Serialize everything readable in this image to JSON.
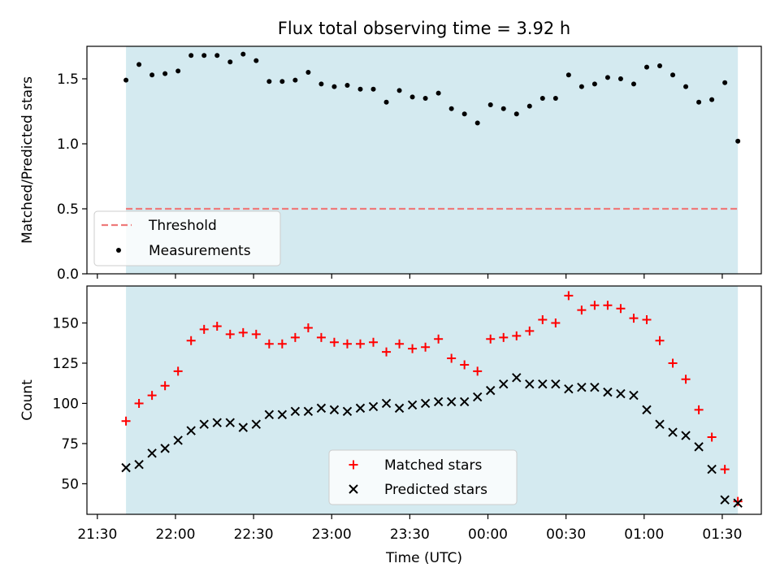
{
  "title": "Flux total observing time = 3.92 h",
  "colors": {
    "observing_span": "#d4eaf0",
    "threshold": "#ee7a7a",
    "measurements": "#000000",
    "matched": "#ff0000",
    "predicted": "#000000"
  },
  "chart_data": [
    {
      "type": "scatter",
      "title": "Flux total observing time = 3.92 h",
      "ylabel": "Matched/Predicted stars",
      "ylim": [
        0,
        1.75
      ],
      "y_ticks": [
        0.0,
        0.5,
        1.0,
        1.5
      ],
      "y_tick_labels": [
        "0.0",
        "0.5",
        "1.0",
        "1.5"
      ],
      "x_axis": "time",
      "x_ticks": [
        "21:30",
        "22:00",
        "22:30",
        "23:00",
        "23:30",
        "00:00",
        "00:30",
        "01:00",
        "01:30"
      ],
      "shaded_span": [
        "21:41",
        "01:36"
      ],
      "legend": {
        "placement": "lower-left",
        "entries": [
          "Threshold",
          "Measurements"
        ]
      },
      "threshold": {
        "name": "Threshold",
        "y": 0.5,
        "style": "dashed"
      },
      "series": [
        {
          "name": "Measurements",
          "x": [
            "21:41",
            "21:46",
            "21:51",
            "21:56",
            "22:01",
            "22:06",
            "22:11",
            "22:16",
            "22:21",
            "22:26",
            "22:31",
            "22:36",
            "22:41",
            "22:46",
            "22:51",
            "22:56",
            "23:01",
            "23:06",
            "23:11",
            "23:16",
            "23:21",
            "23:26",
            "23:31",
            "23:36",
            "23:41",
            "23:46",
            "23:51",
            "23:56",
            "00:01",
            "00:06",
            "00:11",
            "00:16",
            "00:21",
            "00:26",
            "00:31",
            "00:36",
            "00:41",
            "00:46",
            "00:51",
            "00:56",
            "01:01",
            "01:06",
            "01:11",
            "01:16",
            "01:21",
            "01:26",
            "01:31",
            "01:36"
          ],
          "values": [
            1.49,
            1.61,
            1.53,
            1.54,
            1.56,
            1.68,
            1.68,
            1.68,
            1.63,
            1.69,
            1.64,
            1.48,
            1.48,
            1.49,
            1.55,
            1.46,
            1.44,
            1.45,
            1.42,
            1.42,
            1.32,
            1.41,
            1.36,
            1.35,
            1.39,
            1.27,
            1.23,
            1.16,
            1.3,
            1.27,
            1.23,
            1.29,
            1.35,
            1.35,
            1.53,
            1.44,
            1.46,
            1.51,
            1.5,
            1.46,
            1.59,
            1.6,
            1.53,
            1.44,
            1.32,
            1.34,
            1.47,
            1.02
          ]
        }
      ]
    },
    {
      "type": "scatter",
      "xlabel": "Time (UTC)",
      "ylabel": "Count",
      "ylim": [
        31,
        173
      ],
      "y_ticks": [
        50,
        75,
        100,
        125,
        150
      ],
      "y_tick_labels": [
        "50",
        "75",
        "100",
        "125",
        "150"
      ],
      "x_axis": "time",
      "x_ticks": [
        "21:30",
        "22:00",
        "22:30",
        "23:00",
        "23:30",
        "00:00",
        "00:30",
        "01:00",
        "01:30"
      ],
      "x_tick_labels": [
        "21:30",
        "22:00",
        "22:30",
        "23:00",
        "23:30",
        "00:00",
        "00:30",
        "01:00",
        "01:30"
      ],
      "shaded_span": [
        "21:41",
        "01:36"
      ],
      "legend": {
        "placement": "lower-center",
        "entries": [
          "Matched stars",
          "Predicted stars"
        ]
      },
      "series": [
        {
          "name": "Matched stars",
          "marker": "plus",
          "x": [
            "21:41",
            "21:46",
            "21:51",
            "21:56",
            "22:01",
            "22:06",
            "22:11",
            "22:16",
            "22:21",
            "22:26",
            "22:31",
            "22:36",
            "22:41",
            "22:46",
            "22:51",
            "22:56",
            "23:01",
            "23:06",
            "23:11",
            "23:16",
            "23:21",
            "23:26",
            "23:31",
            "23:36",
            "23:41",
            "23:46",
            "23:51",
            "23:56",
            "00:01",
            "00:06",
            "00:11",
            "00:16",
            "00:21",
            "00:26",
            "00:31",
            "00:36",
            "00:41",
            "00:46",
            "00:51",
            "00:56",
            "01:01",
            "01:06",
            "01:11",
            "01:16",
            "01:21",
            "01:26",
            "01:31",
            "01:36"
          ],
          "values": [
            89,
            100,
            105,
            111,
            120,
            139,
            146,
            148,
            143,
            144,
            143,
            137,
            137,
            141,
            147,
            141,
            138,
            137,
            137,
            138,
            132,
            137,
            134,
            135,
            140,
            128,
            124,
            120,
            140,
            141,
            142,
            145,
            152,
            150,
            167,
            158,
            161,
            161,
            159,
            153,
            152,
            139,
            125,
            115,
            96,
            79,
            59,
            39
          ]
        },
        {
          "name": "Predicted stars",
          "marker": "x",
          "x": [
            "21:41",
            "21:46",
            "21:51",
            "21:56",
            "22:01",
            "22:06",
            "22:11",
            "22:16",
            "22:21",
            "22:26",
            "22:31",
            "22:36",
            "22:41",
            "22:46",
            "22:51",
            "22:56",
            "23:01",
            "23:06",
            "23:11",
            "23:16",
            "23:21",
            "23:26",
            "23:31",
            "23:36",
            "23:41",
            "23:46",
            "23:51",
            "23:56",
            "00:01",
            "00:06",
            "00:11",
            "00:16",
            "00:21",
            "00:26",
            "00:31",
            "00:36",
            "00:41",
            "00:46",
            "00:51",
            "00:56",
            "01:01",
            "01:06",
            "01:11",
            "01:16",
            "01:21",
            "01:26",
            "01:31",
            "01:36"
          ],
          "values": [
            60,
            62,
            69,
            72,
            77,
            83,
            87,
            88,
            88,
            85,
            87,
            93,
            93,
            95,
            95,
            97,
            96,
            95,
            97,
            98,
            100,
            97,
            99,
            100,
            101,
            101,
            101,
            104,
            108,
            112,
            116,
            112,
            112,
            112,
            109,
            110,
            110,
            107,
            106,
            105,
            96,
            87,
            82,
            80,
            73,
            59,
            40,
            38
          ]
        }
      ]
    }
  ]
}
